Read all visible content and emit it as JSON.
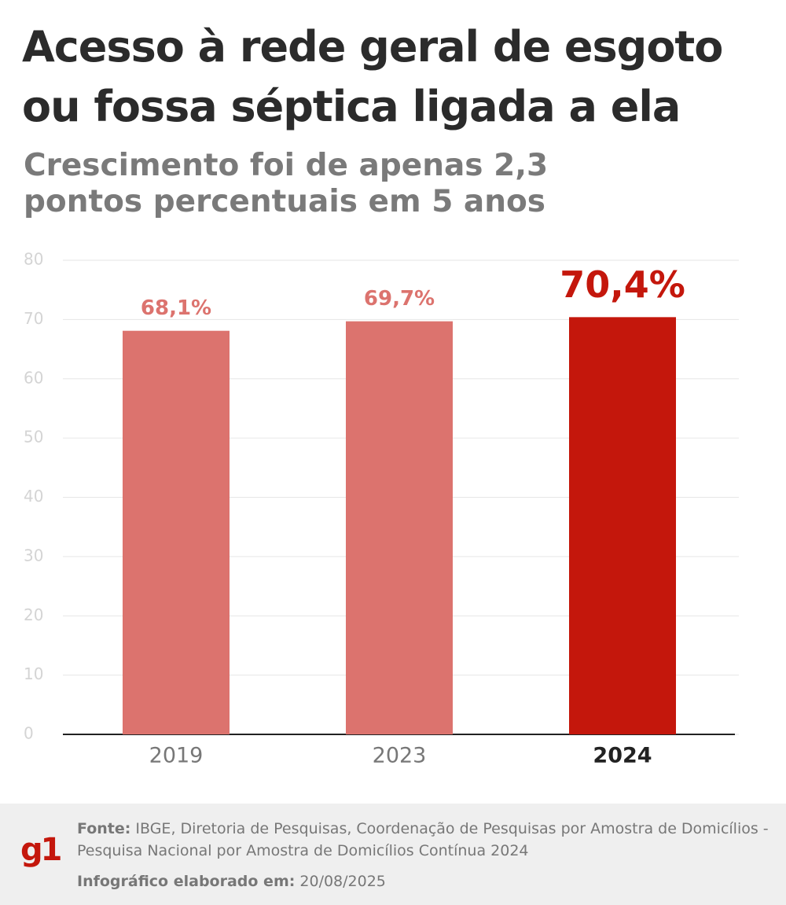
{
  "chart_data": {
    "type": "bar",
    "title": "Acesso à rede geral de esgoto ou fossa séptica ligada a ela",
    "subtitle": "Crescimento foi de apenas 2,3 pontos percentuais em 5 anos",
    "categories": [
      "2019",
      "2023",
      "2024"
    ],
    "values": [
      68.1,
      69.7,
      70.4
    ],
    "value_labels": [
      "68,1%",
      "69,7%",
      "70,4%"
    ],
    "colors": [
      "#dc736e",
      "#dc736e",
      "#c4170c"
    ],
    "highlight_color": "#c4170c",
    "ylim": [
      0,
      80
    ],
    "yticks": [
      0,
      10,
      20,
      30,
      40,
      50,
      60,
      70,
      80
    ],
    "grid": true
  },
  "footer": {
    "logo": "g1",
    "source_label": "Fonte:",
    "source_text": "IBGE, Diretoria de Pesquisas, Coordenação de Pesquisas por Amostra de Domicílios - Pesquisa Nacional por Amostra de Domicílios Contínua 2024",
    "date_label": "Infográfico elaborado em:",
    "date": "20/08/2025"
  }
}
